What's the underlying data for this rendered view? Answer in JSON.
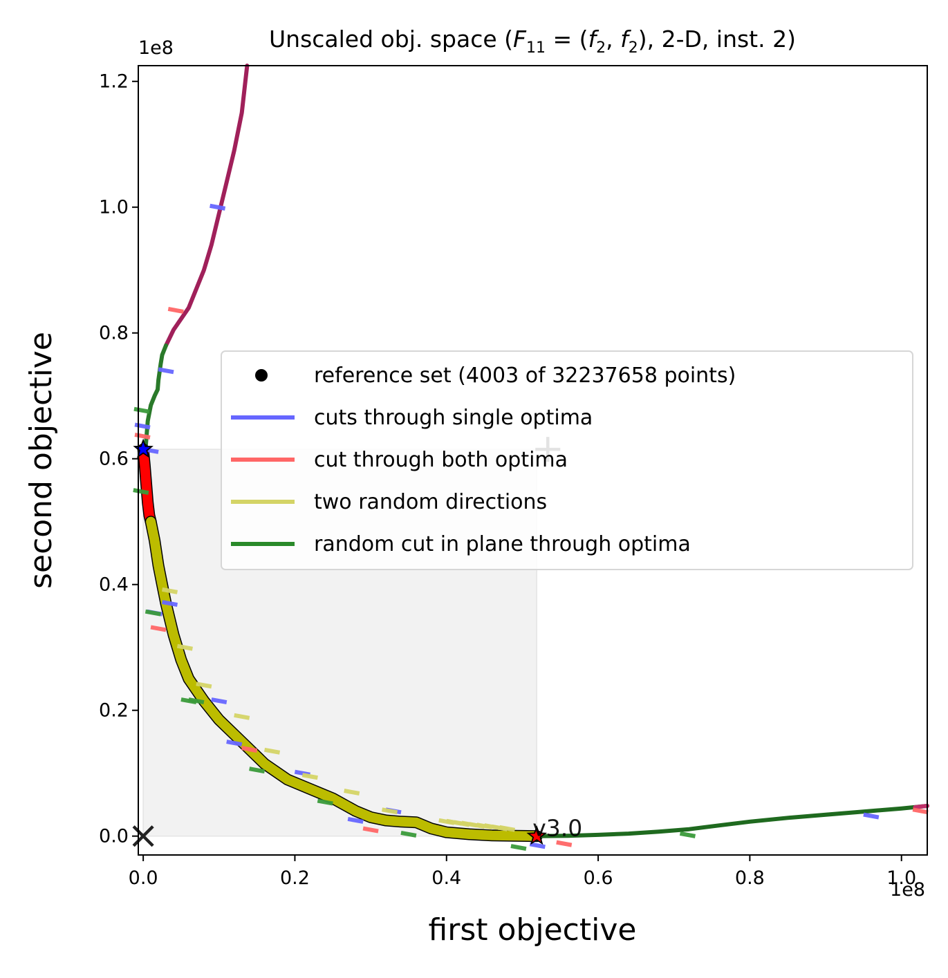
{
  "chart_data": {
    "type": "line",
    "title": "Unscaled obj. space (F11 = (f2, f2), 2-D, inst. 2)",
    "title_parts": {
      "prefix": "Unscaled obj. space (",
      "f": "F",
      "f_sub": "11",
      "eq": " = (",
      "f2a": "f",
      "f2a_sub": "2",
      "comma": ", ",
      "f2b": "f",
      "f2b_sub": "2",
      "suffix": "), 2-D, inst. 2)"
    },
    "xlabel": "first objective",
    "ylabel": "second objective",
    "x_offset_label": "1e8",
    "y_offset_label": "1e8",
    "xlim": [
      -0.0065,
      1.034
    ],
    "ylim": [
      -0.03,
      1.225
    ],
    "xticks": [
      0.0,
      0.2,
      0.4,
      0.6,
      0.8,
      1.0
    ],
    "xtick_labels": [
      "0.0",
      "0.2",
      "0.4",
      "0.6",
      "0.8",
      "1.0"
    ],
    "yticks": [
      0.0,
      0.2,
      0.4,
      0.6,
      0.8,
      1.0,
      1.2
    ],
    "ytick_labels": [
      "0.0",
      "0.2",
      "0.4",
      "0.6",
      "0.8",
      "1.0",
      "1.2"
    ],
    "legend_position": "center-right",
    "legend": [
      {
        "label": "reference set (4003 of 32237658 points)",
        "marker": "dot",
        "color": "#000000"
      },
      {
        "label": "cuts through single optima",
        "color": "#6666ff"
      },
      {
        "label": "cut through both optima",
        "color": "#ff6666"
      },
      {
        "label": "two random directions",
        "color": "#d4d466"
      },
      {
        "label": "random cut in plane through optima",
        "color": "#2a8a2a"
      }
    ],
    "version_label": "v3.0",
    "dominated_region": {
      "x": [
        0.0,
        0.519
      ],
      "y": [
        0.0,
        0.615
      ]
    },
    "ideal_point": [
      0.0,
      0.0
    ],
    "nadir_point": [
      0.519,
      0.615
    ],
    "optimum_f1": [
      0.0,
      0.615
    ],
    "optimum_f2": [
      0.519,
      0.0
    ],
    "series": [
      {
        "name": "cuts through single optima",
        "color": "#a0205a",
        "x": [
          0.03,
          0.04,
          0.06,
          0.07,
          0.08,
          0.09,
          0.1,
          0.11,
          0.12,
          0.13,
          0.137
        ],
        "y": [
          0.78,
          0.805,
          0.84,
          0.87,
          0.9,
          0.94,
          0.99,
          1.04,
          1.09,
          1.15,
          1.225
        ]
      },
      {
        "name": "random cut in plane through optima",
        "color": "#2a7a2a",
        "x": [
          0.003,
          0.006,
          0.01,
          0.015,
          0.019,
          0.02,
          0.023,
          0.025,
          0.03
        ],
        "y": [
          0.615,
          0.66,
          0.685,
          0.7,
          0.71,
          0.725,
          0.75,
          0.765,
          0.78
        ]
      },
      {
        "name": "cut through both optima",
        "color": "#ff0000",
        "x": [
          0.0,
          0.002,
          0.004,
          0.006,
          0.008,
          0.01
        ],
        "y": [
          0.615,
          0.59,
          0.56,
          0.53,
          0.51,
          0.5
        ]
      },
      {
        "name": "two random directions",
        "color": "#bcbc00",
        "x": [
          0.01,
          0.015,
          0.02,
          0.025,
          0.03,
          0.04,
          0.05,
          0.06,
          0.08,
          0.1,
          0.13,
          0.16,
          0.19,
          0.22,
          0.25,
          0.28,
          0.3,
          0.32,
          0.34,
          0.36,
          0.38,
          0.4,
          0.43,
          0.46,
          0.49,
          0.519
        ],
        "y": [
          0.5,
          0.47,
          0.43,
          0.4,
          0.37,
          0.32,
          0.28,
          0.25,
          0.215,
          0.185,
          0.15,
          0.115,
          0.09,
          0.075,
          0.06,
          0.04,
          0.03,
          0.025,
          0.023,
          0.022,
          0.012,
          0.006,
          0.003,
          0.001,
          0.0005,
          0.0
        ]
      },
      {
        "name": "random cut in plane through optima",
        "color": "#1f6a1f",
        "x": [
          0.519,
          0.56,
          0.6,
          0.64,
          0.68,
          0.72,
          0.76,
          0.8,
          0.85,
          0.9,
          0.95,
          1.0,
          1.034
        ],
        "y": [
          0.0,
          0.0005,
          0.002,
          0.004,
          0.007,
          0.011,
          0.017,
          0.023,
          0.029,
          0.034,
          0.039,
          0.044,
          0.048
        ]
      },
      {
        "name": "cut through both optima",
        "color": "#c0306a",
        "x": [
          1.018,
          1.034
        ],
        "y": [
          0.046,
          0.048
        ]
      }
    ],
    "ticks_markers": [
      {
        "color": "#6666ff",
        "x": [
          0.098,
          0.03,
          -0.001,
          0.01,
          0.035,
          0.015,
          0.1,
          0.12,
          0.21,
          0.28,
          0.33,
          0.52,
          0.96
        ],
        "y": [
          1.0,
          0.74,
          0.652,
          0.613,
          0.37,
          0.355,
          0.215,
          0.148,
          0.1,
          0.025,
          0.04,
          -0.015,
          0.032
        ]
      },
      {
        "color": "#ff6666",
        "x": [
          0.043,
          -0.001,
          0.02,
          0.14,
          0.3,
          0.555,
          1.025
        ],
        "y": [
          0.836,
          0.636,
          0.33,
          0.138,
          0.01,
          -0.012,
          0.04
        ]
      },
      {
        "color": "#d4d466",
        "x": [
          0.035,
          0.055,
          0.08,
          0.13,
          0.17,
          0.22,
          0.275,
          0.325,
          0.4,
          0.41,
          0.42,
          0.43,
          0.44,
          0.45,
          0.46,
          0.47,
          0.48
        ],
        "y": [
          0.39,
          0.3,
          0.24,
          0.19,
          0.135,
          0.095,
          0.07,
          0.04,
          0.023,
          0.022,
          0.02,
          0.019,
          0.017,
          0.016,
          0.015,
          0.013,
          0.012
        ]
      },
      {
        "color": "#3a9a3a",
        "x": [
          -0.002,
          -0.003,
          0.013,
          0.06,
          0.07,
          0.15,
          0.24,
          0.35,
          0.495,
          0.718
        ],
        "y": [
          0.677,
          0.548,
          0.355,
          0.215,
          0.215,
          0.105,
          0.054,
          0.003,
          -0.018,
          0.002
        ]
      }
    ]
  }
}
